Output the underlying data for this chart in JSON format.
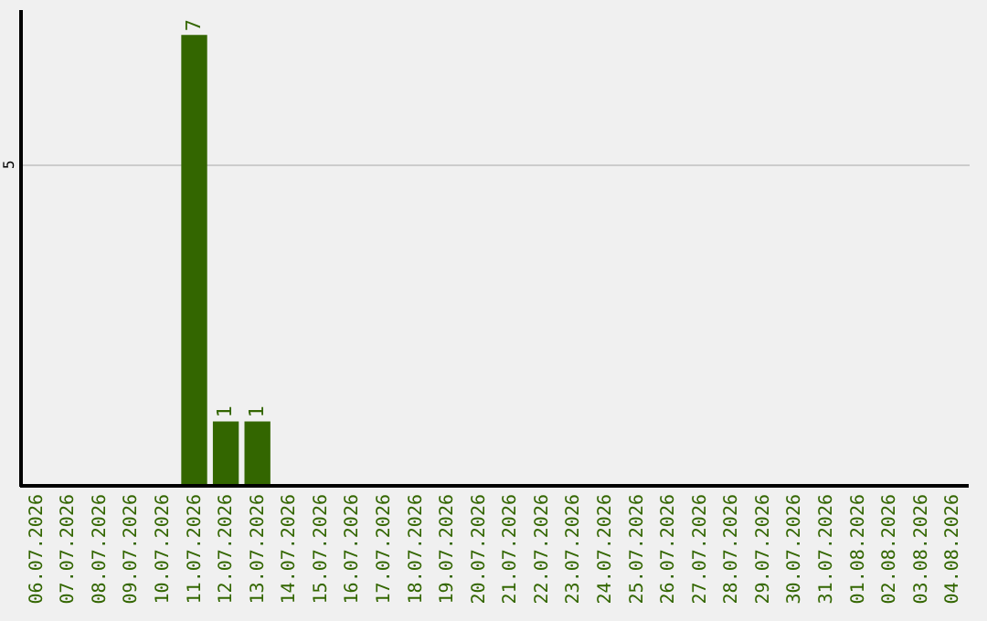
{
  "chart_data": {
    "type": "bar",
    "categories": [
      "06.07.2026",
      "07.07.2026",
      "08.07.2026",
      "09.07.2026",
      "10.07.2026",
      "11.07.2026",
      "12.07.2026",
      "13.07.2026",
      "14.07.2026",
      "15.07.2026",
      "16.07.2026",
      "17.07.2026",
      "18.07.2026",
      "19.07.2026",
      "20.07.2026",
      "21.07.2026",
      "22.07.2026",
      "23.07.2026",
      "24.07.2026",
      "25.07.2026",
      "26.07.2026",
      "27.07.2026",
      "28.07.2026",
      "29.07.2026",
      "30.07.2026",
      "31.07.2026",
      "01.08.2026",
      "02.08.2026",
      "03.08.2026",
      "04.08.2026"
    ],
    "values": [
      0,
      0,
      0,
      0,
      0,
      7,
      1,
      1,
      0,
      0,
      0,
      0,
      0,
      0,
      0,
      0,
      0,
      0,
      0,
      0,
      0,
      0,
      0,
      0,
      0,
      0,
      0,
      0,
      0,
      0
    ],
    "value_labels": [
      null,
      null,
      null,
      null,
      null,
      "7",
      "1",
      "1",
      null,
      null,
      null,
      null,
      null,
      null,
      null,
      null,
      null,
      null,
      null,
      null,
      null,
      null,
      null,
      null,
      null,
      null,
      null,
      null,
      null,
      null
    ],
    "color": "#336600",
    "ylim": [
      0,
      7.4
    ],
    "yticks": [
      5
    ],
    "grid": "y"
  }
}
